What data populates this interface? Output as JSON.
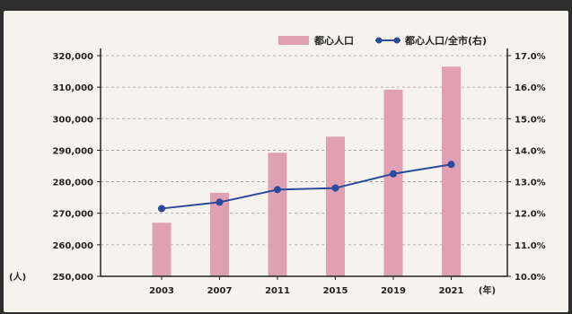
{
  "chart_data": {
    "type": "bar+line",
    "categories": [
      "2003",
      "2007",
      "2011",
      "2015",
      "2019",
      "2021"
    ],
    "x_unit": "(年)",
    "left_axis": {
      "unit": "(人)",
      "ylim": [
        250000,
        320000
      ],
      "ticks": [
        "250,000",
        "260,000",
        "270,000",
        "280,000",
        "290,000",
        "300,000",
        "310,000",
        "320,000"
      ],
      "tick_values": [
        250000,
        260000,
        270000,
        280000,
        290000,
        300000,
        310000,
        320000
      ]
    },
    "right_axis": {
      "ylim": [
        10.0,
        17.0
      ],
      "ticks": [
        "10.0%",
        "11.0%",
        "12.0%",
        "13.0%",
        "14.0%",
        "15.0%",
        "16.0%",
        "17.0%"
      ],
      "tick_values": [
        10,
        11,
        12,
        13,
        14,
        15,
        16,
        17
      ]
    },
    "series": [
      {
        "name": "都心人口",
        "kind": "bar",
        "axis": "left",
        "color": "#e0a0b4",
        "values": [
          267000,
          276500,
          289200,
          294300,
          309200,
          316500
        ]
      },
      {
        "name": "都心人口/全市(右)",
        "kind": "line",
        "axis": "right",
        "color": "#2a4a9a",
        "values": [
          12.15,
          12.35,
          12.75,
          12.8,
          13.25,
          13.55
        ]
      }
    ],
    "grid": true,
    "legend": "top-right"
  }
}
